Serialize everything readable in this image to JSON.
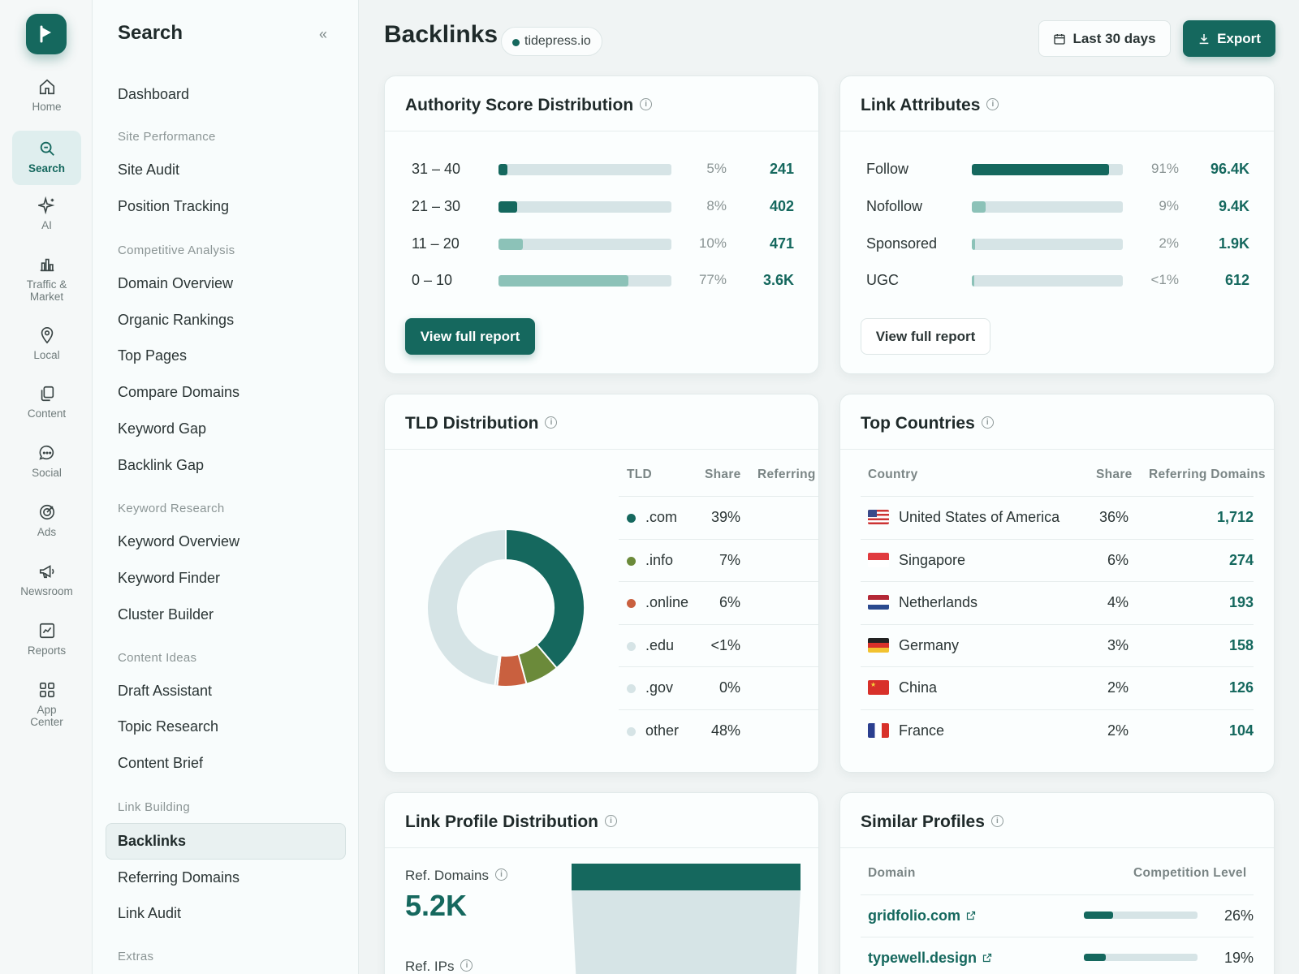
{
  "rail": {
    "items": [
      {
        "label": "Home",
        "icon": "home-icon"
      },
      {
        "label": "Search",
        "icon": "search-icon"
      },
      {
        "label": "AI",
        "icon": "sparkle-icon"
      },
      {
        "label": "Traffic &\nMarket",
        "icon": "bar-chart-icon"
      },
      {
        "label": "Local",
        "icon": "map-pin-icon"
      },
      {
        "label": "Content",
        "icon": "copy-icon"
      },
      {
        "label": "Social",
        "icon": "chat-bubble-icon"
      },
      {
        "label": "Ads",
        "icon": "target-icon"
      },
      {
        "label": "Newsroom",
        "icon": "megaphone-icon"
      },
      {
        "label": "Reports",
        "icon": "line-chart-icon"
      },
      {
        "label": "App\nCenter",
        "icon": "grid-icon"
      }
    ]
  },
  "nav": {
    "title": "Search",
    "collapse": "«",
    "dashboard": "Dashboard",
    "sections": [
      {
        "title": "Site Performance",
        "items": [
          "Site Audit",
          "Position Tracking"
        ]
      },
      {
        "title": "Competitive Analysis",
        "items": [
          "Domain Overview",
          "Organic Rankings",
          "Top Pages",
          "Compare Domains",
          "Keyword Gap",
          "Backlink Gap"
        ]
      },
      {
        "title": "Keyword Research",
        "items": [
          "Keyword Overview",
          "Keyword Finder",
          "Cluster Builder"
        ]
      },
      {
        "title": "Content Ideas",
        "items": [
          "Draft Assistant",
          "Topic Research",
          "Content Brief"
        ]
      },
      {
        "title": "Link Building",
        "items": [
          "Backlinks",
          "Referring Domains",
          "Link Audit"
        ]
      },
      {
        "title": "Extras",
        "items": []
      }
    ],
    "active": "Backlinks"
  },
  "header": {
    "title": "Backlinks",
    "domain": "tidepress.io",
    "date_range": "Last 30 days",
    "export": "Export"
  },
  "authority": {
    "title": "Authority Score Distribution",
    "rows": [
      {
        "label": "31 – 40",
        "pct": "5%",
        "value": "241",
        "fill": 0.05
      },
      {
        "label": "21 – 30",
        "pct": "8%",
        "value": "402",
        "fill": 0.11
      },
      {
        "label": "11 – 20",
        "pct": "10%",
        "value": "471",
        "fill": 0.14
      },
      {
        "label": "0 – 10",
        "pct": "77%",
        "value": "3.6K",
        "fill": 0.75
      }
    ],
    "button": "View full report"
  },
  "attributes": {
    "title": "Link Attributes",
    "rows": [
      {
        "label": "Follow",
        "pct": "91%",
        "value": "96.4K",
        "fill": 0.91
      },
      {
        "label": "Nofollow",
        "pct": "9%",
        "value": "9.4K",
        "fill": 0.09
      },
      {
        "label": "Sponsored",
        "pct": "2%",
        "value": "1.9K",
        "fill": 0.02
      },
      {
        "label": "UGC",
        "pct": "<1%",
        "value": "612",
        "fill": 0.005
      }
    ],
    "button": "View full report"
  },
  "tld": {
    "title": "TLD Distribution",
    "headers": {
      "tld": "TLD",
      "share": "Share",
      "referring": "Referring"
    },
    "rows": [
      {
        "tld": ".com",
        "share": "39%",
        "color": "#15685e"
      },
      {
        "tld": ".info",
        "share": "7%",
        "color": "#6b8a3a"
      },
      {
        "tld": ".online",
        "share": "6%",
        "color": "#c9603f"
      },
      {
        "tld": ".edu",
        "share": "<1%",
        "color": "#d6e4e6"
      },
      {
        "tld": ".gov",
        "share": "0%",
        "color": "#d6e4e6"
      },
      {
        "tld": "other",
        "share": "48%",
        "color": "#d6e4e6"
      }
    ]
  },
  "chart_data": {
    "type": "pie",
    "categories": [
      ".com",
      ".info",
      ".online",
      ".edu",
      ".gov",
      "other"
    ],
    "values": [
      39,
      7,
      6,
      0.5,
      0,
      48
    ],
    "colors": [
      "#15685e",
      "#6b8a3a",
      "#c9603f",
      "#d6e4e6",
      "#d6e4e6",
      "#d6e4e6"
    ],
    "title": "TLD Distribution"
  },
  "countries": {
    "title": "Top Countries",
    "headers": {
      "country": "Country",
      "share": "Share",
      "domains": "Referring Domains"
    },
    "rows": [
      {
        "name": "United States of America",
        "share": "36%",
        "domains": "1,712",
        "flag": "us-flag"
      },
      {
        "name": "Singapore",
        "share": "6%",
        "domains": "274",
        "flag": "sg-flag"
      },
      {
        "name": "Netherlands",
        "share": "4%",
        "domains": "193",
        "flag": "nl-flag"
      },
      {
        "name": "Germany",
        "share": "3%",
        "domains": "158",
        "flag": "de-flag"
      },
      {
        "name": "China",
        "share": "2%",
        "domains": "126",
        "flag": "cn-flag"
      },
      {
        "name": "France",
        "share": "2%",
        "domains": "104",
        "flag": "fr-flag"
      }
    ]
  },
  "profile": {
    "title": "Link Profile Distribution",
    "ref_domains_label": "Ref. Domains",
    "ref_domains_value": "5.2K",
    "ref_ips_label": "Ref. IPs"
  },
  "similar": {
    "title": "Similar Profiles",
    "headers": {
      "domain": "Domain",
      "level": "Competition Level"
    },
    "rows": [
      {
        "domain": "gridfolio.com",
        "level": "26%",
        "fill": 0.26
      },
      {
        "domain": "typewell.design",
        "level": "19%",
        "fill": 0.19
      }
    ]
  }
}
